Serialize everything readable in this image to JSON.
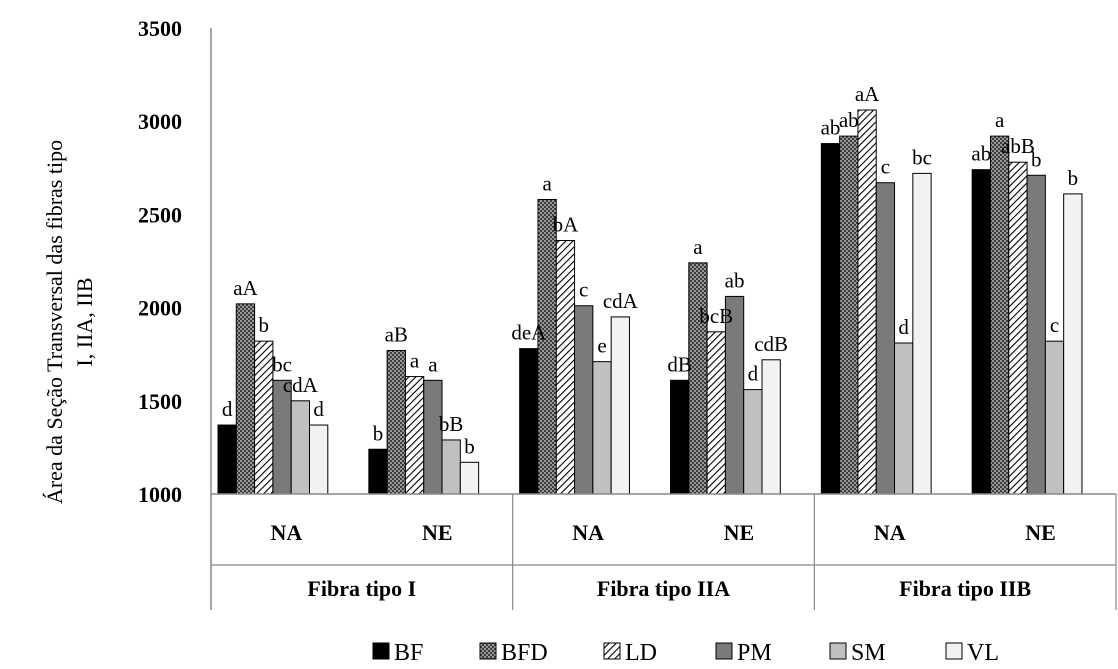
{
  "chart_data": {
    "type": "bar",
    "ylabel_lines": [
      "Área da Seção Transversal das fibras tipo",
      "I, IIA, IIB"
    ],
    "ylim": [
      1000,
      3500
    ],
    "yticks": [
      1000,
      1500,
      2000,
      2500,
      3000,
      3500
    ],
    "grid": false,
    "legend_position": "bottom",
    "groups": [
      {
        "label": "Fibra tipo I",
        "subgroups": [
          "NA",
          "NE"
        ]
      },
      {
        "label": "Fibra tipo IIA",
        "subgroups": [
          "NA",
          "NE"
        ]
      },
      {
        "label": "Fibra tipo IIB",
        "subgroups": [
          "NA",
          "NE"
        ]
      }
    ],
    "series": [
      {
        "name": "BF",
        "color": "#000000",
        "pattern": "solid-black",
        "values": [
          1370,
          1240,
          1780,
          1610,
          2880,
          2740
        ],
        "labels": [
          "d",
          "b",
          "deA",
          "dB",
          "ab",
          "ab"
        ]
      },
      {
        "name": "BFD",
        "color": "#5a5a5a",
        "pattern": "dots-dense",
        "values": [
          2020,
          1770,
          2580,
          2240,
          2920,
          2920
        ],
        "labels": [
          "aA",
          "aB",
          "a",
          "a",
          "ab",
          "a"
        ]
      },
      {
        "name": "LD",
        "color": "#ffffff",
        "pattern": "diagonal-hatch",
        "values": [
          1820,
          1630,
          2360,
          1870,
          3060,
          2780
        ],
        "labels": [
          "b",
          "a",
          "bA",
          "bcB",
          "aA",
          "abB"
        ]
      },
      {
        "name": "PM",
        "color": "#7a7a7a",
        "pattern": "solid-gray",
        "values": [
          1610,
          1610,
          2010,
          2060,
          2670,
          2710
        ],
        "labels": [
          "bc",
          "a",
          "c",
          "ab",
          "c",
          "b"
        ]
      },
      {
        "name": "SM",
        "color": "#c0c0c0",
        "pattern": "solid-lightgray",
        "values": [
          1500,
          1290,
          1710,
          1560,
          1810,
          1820
        ],
        "labels": [
          "cdA",
          "bB",
          "e",
          "d",
          "d",
          "c"
        ]
      },
      {
        "name": "VL",
        "color": "#f2f2f2",
        "pattern": "solid-white",
        "values": [
          1370,
          1170,
          1950,
          1720,
          2720,
          2610
        ],
        "labels": [
          "d",
          "b",
          "cdA",
          "cdB",
          "bc",
          "b"
        ]
      }
    ]
  }
}
